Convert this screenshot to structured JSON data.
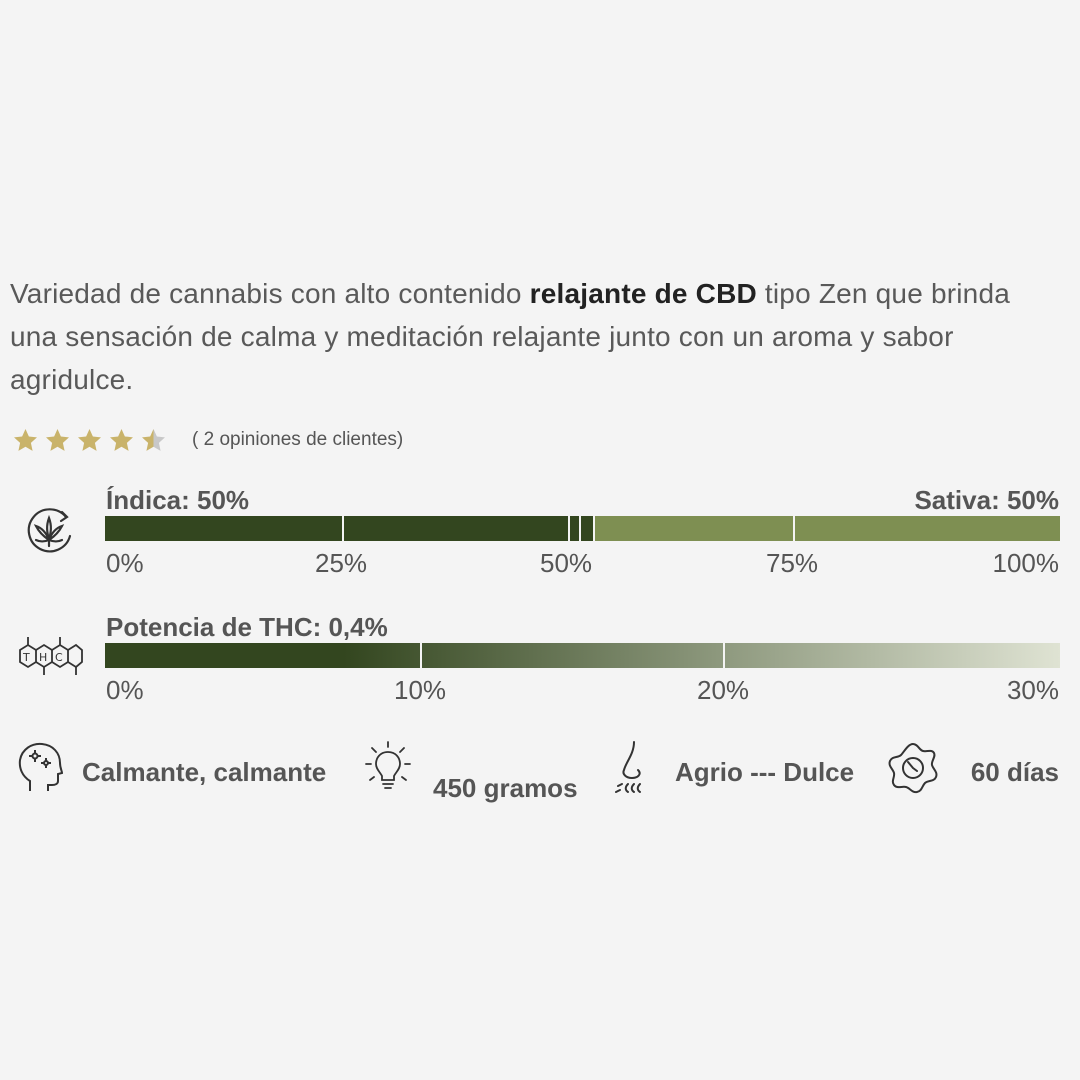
{
  "description": {
    "text_before": "Variedad de cannabis con alto contenido ",
    "text_bold": "relajante de CBD",
    "text_after": " tipo Zen que brinda una sensación de calma y meditación relajante junto con un aroma y sabor agridulce."
  },
  "rating": {
    "value": 4.5,
    "max": 5,
    "star_color": "#c9b36a",
    "empty_color": "#c8c8c8",
    "reviews_label": "( 2 opiniones de clientes)"
  },
  "genetics": {
    "icon": "cannabis-cycle-icon",
    "indica_label": "Índica: 50%",
    "sativa_label": "Sativa: 50%",
    "indica_percent": 50,
    "indica_color": "#33461f",
    "sativa_color": "#7e8f52",
    "ticks": [
      "0%",
      "25%",
      "50%",
      "75%",
      "100%"
    ]
  },
  "thc": {
    "icon": "thc-molecule-icon",
    "label": "Potencia de THC: 0,4%",
    "gradient_start": "#33461f",
    "gradient_end": "#dfe3d3",
    "ticks": [
      "0%",
      "10%",
      "20%",
      "30%"
    ]
  },
  "features": [
    {
      "icon": "head-mind-icon",
      "text": "Calmante, calmante"
    },
    {
      "icon": "light-bulb-icon",
      "text": "450 gramos"
    },
    {
      "icon": "nose-smell-icon",
      "text": "Agrio --- Dulce"
    },
    {
      "icon": "flower-clock-icon",
      "text": "60 días"
    }
  ]
}
